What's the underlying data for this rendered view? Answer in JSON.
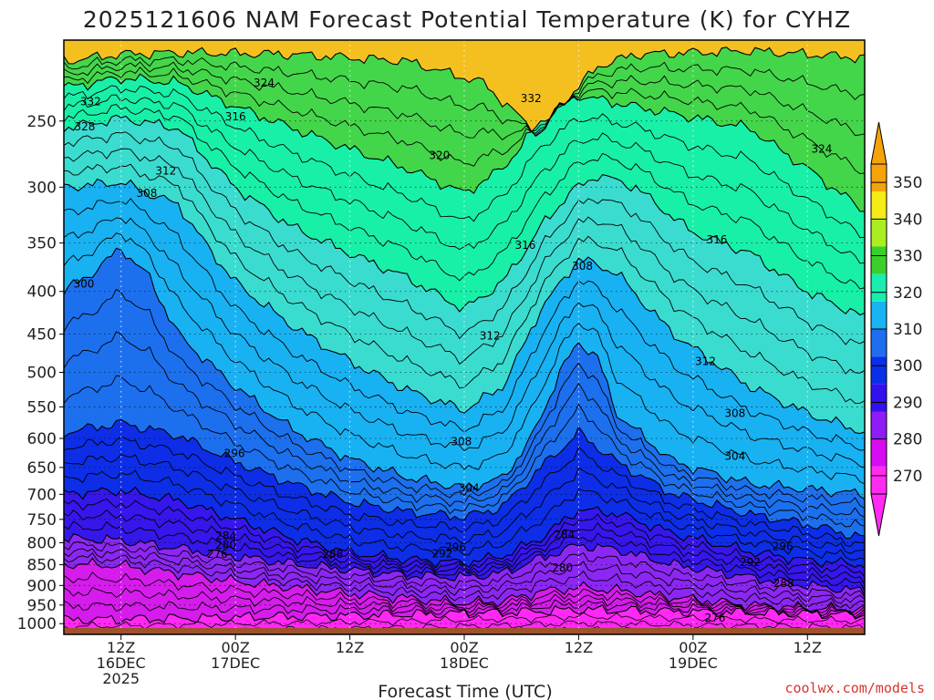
{
  "chart_data": {
    "type": "heatmap",
    "title": "2025121606 NAM Forecast Potential Temperature (K) for CYHZ",
    "xlabel": "Forecast Time (UTC)",
    "ylabel": "",
    "credit": "coolwx.com/models",
    "log_pressure_axis": true,
    "y_ticks": [
      250,
      300,
      350,
      400,
      450,
      500,
      550,
      600,
      650,
      700,
      750,
      800,
      850,
      900,
      950,
      1000
    ],
    "ylim": [
      200,
      1030
    ],
    "x_range_hours": [
      6,
      90
    ],
    "x_ticks": [
      {
        "hour": 12,
        "lines": [
          "12Z",
          "16DEC",
          "2025"
        ]
      },
      {
        "hour": 24,
        "lines": [
          "00Z",
          "17DEC"
        ]
      },
      {
        "hour": 36,
        "lines": [
          "12Z"
        ]
      },
      {
        "hour": 48,
        "lines": [
          "00Z",
          "18DEC"
        ]
      },
      {
        "hour": 60,
        "lines": [
          "12Z"
        ]
      },
      {
        "hour": 72,
        "lines": [
          "00Z",
          "19DEC"
        ]
      },
      {
        "hour": 84,
        "lines": [
          "12Z"
        ]
      }
    ],
    "colorbar": {
      "min": 265,
      "max": 355,
      "levels": [
        270,
        280,
        290,
        300,
        310,
        320,
        330,
        340,
        350
      ],
      "tick_labels": [
        "270",
        "280",
        "290",
        "300",
        "310",
        "320",
        "330",
        "340",
        "350"
      ],
      "colors": [
        "#ff2bf0",
        "#d80cf2",
        "#8f1cf5",
        "#3310ef",
        "#0a2fe8",
        "#1d6ff0",
        "#17b3f3",
        "#18eeb0",
        "#3ad02a",
        "#aaee22",
        "#f4ec12",
        "#f5a30a"
      ]
    },
    "band_colors": [
      "#ff28f4",
      "#d61cec",
      "#8c27f3",
      "#3517ec",
      "#0d2ee6",
      "#1c70ee",
      "#18b2f3",
      "#3bdcd0",
      "#18f0a8",
      "#44d64a",
      "#c8f03a",
      "#f4c020"
    ],
    "series": [
      {
        "name": "270",
        "values": [
          [
            6,
            990
          ],
          [
            18,
            985
          ],
          [
            30,
            980
          ],
          [
            42,
            975
          ],
          [
            54,
            968
          ],
          [
            60,
            962
          ],
          [
            66,
            965
          ],
          [
            78,
            970
          ],
          [
            90,
            975
          ]
        ]
      },
      {
        "name": "276",
        "values": [
          [
            6,
            848
          ],
          [
            12,
            852
          ],
          [
            18,
            870
          ],
          [
            24,
            890
          ],
          [
            30,
            905
          ],
          [
            36,
            920
          ],
          [
            42,
            932
          ],
          [
            48,
            945
          ],
          [
            52,
            940
          ],
          [
            56,
            915
          ],
          [
            60,
            905
          ],
          [
            64,
            912
          ],
          [
            70,
            930
          ],
          [
            78,
            950
          ],
          [
            84,
            958
          ],
          [
            90,
            962
          ]
        ]
      },
      {
        "name": "284",
        "values": [
          [
            6,
            790
          ],
          [
            12,
            795
          ],
          [
            18,
            812
          ],
          [
            24,
            830
          ],
          [
            30,
            848
          ],
          [
            36,
            862
          ],
          [
            42,
            875
          ],
          [
            48,
            880
          ],
          [
            52,
            870
          ],
          [
            56,
            835
          ],
          [
            60,
            805
          ],
          [
            64,
            815
          ],
          [
            70,
            850
          ],
          [
            78,
            880
          ],
          [
            84,
            900
          ],
          [
            90,
            915
          ]
        ]
      },
      {
        "name": "292",
        "values": [
          [
            6,
            698
          ],
          [
            12,
            693
          ],
          [
            18,
            712
          ],
          [
            24,
            750
          ],
          [
            30,
            790
          ],
          [
            36,
            822
          ],
          [
            42,
            838
          ],
          [
            48,
            845
          ],
          [
            52,
            830
          ],
          [
            56,
            790
          ],
          [
            60,
            730
          ],
          [
            64,
            738
          ],
          [
            70,
            780
          ],
          [
            78,
            820
          ],
          [
            84,
            840
          ],
          [
            90,
            850
          ]
        ]
      },
      {
        "name": "296",
        "values": [
          [
            6,
            590
          ],
          [
            12,
            575
          ],
          [
            18,
            595
          ],
          [
            24,
            640
          ],
          [
            30,
            680
          ],
          [
            36,
            715
          ],
          [
            42,
            735
          ],
          [
            48,
            745
          ],
          [
            52,
            725
          ],
          [
            56,
            650
          ],
          [
            60,
            590
          ],
          [
            64,
            640
          ],
          [
            70,
            700
          ],
          [
            78,
            740
          ],
          [
            84,
            760
          ],
          [
            90,
            790
          ]
        ]
      },
      {
        "name": "300",
        "values": [
          [
            6,
            400
          ],
          [
            9,
            380
          ],
          [
            12,
            355
          ],
          [
            15,
            385
          ],
          [
            18,
            450
          ],
          [
            24,
            520
          ],
          [
            30,
            585
          ],
          [
            36,
            635
          ],
          [
            42,
            668
          ],
          [
            48,
            688
          ],
          [
            52,
            670
          ],
          [
            55,
            600
          ],
          [
            58,
            500
          ],
          [
            60,
            460
          ],
          [
            62,
            480
          ],
          [
            64,
            560
          ],
          [
            70,
            640
          ],
          [
            78,
            680
          ],
          [
            84,
            690
          ],
          [
            90,
            700
          ]
        ]
      },
      {
        "name": "308",
        "values": [
          [
            6,
            300
          ],
          [
            12,
            296
          ],
          [
            18,
            315
          ],
          [
            24,
            390
          ],
          [
            30,
            440
          ],
          [
            36,
            485
          ],
          [
            42,
            525
          ],
          [
            48,
            555
          ],
          [
            52,
            520
          ],
          [
            56,
            420
          ],
          [
            60,
            365
          ],
          [
            64,
            380
          ],
          [
            70,
            450
          ],
          [
            78,
            520
          ],
          [
            84,
            560
          ],
          [
            90,
            590
          ]
        ]
      },
      {
        "name": "316",
        "values": [
          [
            6,
            255
          ],
          [
            12,
            248
          ],
          [
            18,
            255
          ],
          [
            24,
            300
          ],
          [
            30,
            335
          ],
          [
            36,
            360
          ],
          [
            42,
            385
          ],
          [
            48,
            420
          ],
          [
            52,
            390
          ],
          [
            56,
            335
          ],
          [
            59,
            305
          ],
          [
            62,
            290
          ],
          [
            66,
            300
          ],
          [
            72,
            340
          ],
          [
            78,
            360
          ],
          [
            84,
            400
          ],
          [
            90,
            430
          ]
        ]
      },
      {
        "name": "324",
        "values": [
          [
            6,
            228
          ],
          [
            12,
            222
          ],
          [
            18,
            225
          ],
          [
            24,
            240
          ],
          [
            30,
            255
          ],
          [
            36,
            270
          ],
          [
            42,
            285
          ],
          [
            48,
            305
          ],
          [
            52,
            285
          ],
          [
            56,
            250
          ],
          [
            60,
            233
          ],
          [
            64,
            238
          ],
          [
            70,
            245
          ],
          [
            78,
            255
          ],
          [
            84,
            285
          ],
          [
            90,
            320
          ]
        ]
      },
      {
        "name": "332",
        "values": [
          [
            6,
            212
          ],
          [
            12,
            208
          ],
          [
            18,
            207
          ],
          [
            30,
            208
          ],
          [
            42,
            212
          ],
          [
            50,
            225
          ],
          [
            56,
            260
          ],
          [
            58,
            240
          ],
          [
            62,
            215
          ],
          [
            66,
            208
          ],
          [
            78,
            206
          ],
          [
            90,
            210
          ]
        ]
      }
    ],
    "contour_labels": [
      {
        "text": "324",
        "hour": 27,
        "pressure": 225
      },
      {
        "text": "332",
        "hour": 8.8,
        "pressure": 237
      },
      {
        "text": "328",
        "hour": 8.2,
        "pressure": 254
      },
      {
        "text": "316",
        "hour": 24,
        "pressure": 247
      },
      {
        "text": "320",
        "hour": 45.4,
        "pressure": 275
      },
      {
        "text": "332",
        "hour": 55,
        "pressure": 235
      },
      {
        "text": "312",
        "hour": 16.7,
        "pressure": 287
      },
      {
        "text": "308",
        "hour": 14.7,
        "pressure": 305
      },
      {
        "text": "324",
        "hour": 85.5,
        "pressure": 270
      },
      {
        "text": "316",
        "hour": 54.4,
        "pressure": 352
      },
      {
        "text": "316",
        "hour": 74.5,
        "pressure": 347
      },
      {
        "text": "308",
        "hour": 60.4,
        "pressure": 373
      },
      {
        "text": "300",
        "hour": 8.1,
        "pressure": 392
      },
      {
        "text": "312",
        "hour": 50.7,
        "pressure": 452
      },
      {
        "text": "312",
        "hour": 73.3,
        "pressure": 485
      },
      {
        "text": "308",
        "hour": 76.4,
        "pressure": 560
      },
      {
        "text": "308",
        "hour": 47.7,
        "pressure": 605
      },
      {
        "text": "296",
        "hour": 23.9,
        "pressure": 625
      },
      {
        "text": "304",
        "hour": 76.4,
        "pressure": 630
      },
      {
        "text": "304",
        "hour": 48.5,
        "pressure": 688
      },
      {
        "text": "284",
        "hour": 23,
        "pressure": 785
      },
      {
        "text": "280",
        "hour": 23,
        "pressure": 805
      },
      {
        "text": "276",
        "hour": 22.1,
        "pressure": 826
      },
      {
        "text": "288",
        "hour": 34.2,
        "pressure": 826
      },
      {
        "text": "296",
        "hour": 47.1,
        "pressure": 810
      },
      {
        "text": "292",
        "hour": 45.7,
        "pressure": 825
      },
      {
        "text": "284",
        "hour": 58.5,
        "pressure": 782
      },
      {
        "text": "280",
        "hour": 58.3,
        "pressure": 857
      },
      {
        "text": "296",
        "hour": 81.4,
        "pressure": 808
      },
      {
        "text": "292",
        "hour": 78,
        "pressure": 845
      },
      {
        "text": "288",
        "hour": 81.5,
        "pressure": 895
      },
      {
        "text": "276",
        "hour": 74.3,
        "pressure": 985
      }
    ],
    "ground_color": "#a0522d",
    "grid": "dotted",
    "legend": "right"
  }
}
